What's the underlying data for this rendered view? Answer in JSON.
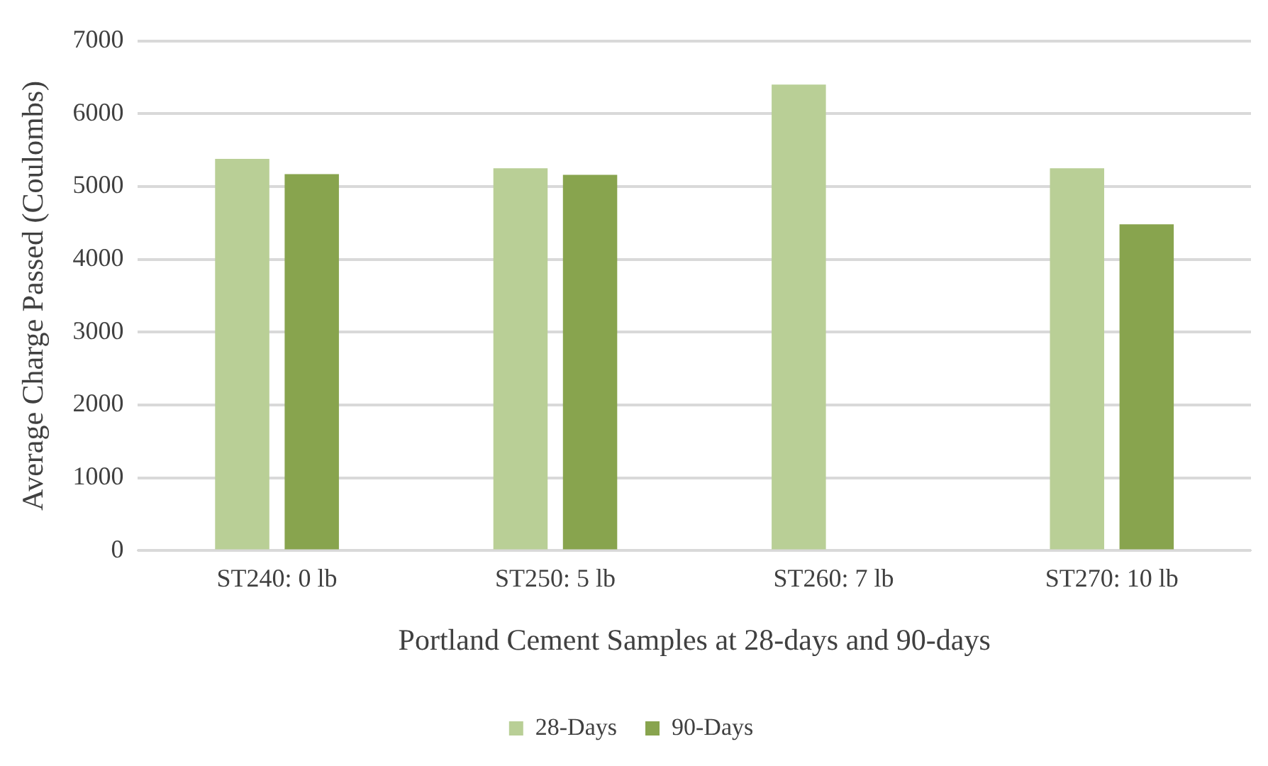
{
  "chart_data": {
    "type": "bar",
    "xlabel": "Portland Cement Samples at 28-days and 90-days",
    "ylabel": "Average Charge Passed (Coulombs)",
    "categories": [
      "ST240: 0 lb",
      "ST250: 5 lb",
      "ST260: 7 lb",
      "ST270: 10 lb"
    ],
    "series": [
      {
        "name": "28-Days",
        "color": "#b9cf96",
        "values": [
          5380,
          5250,
          6400,
          5250
        ]
      },
      {
        "name": "90-Days",
        "color": "#88a44e",
        "values": [
          5170,
          5160,
          null,
          4480
        ]
      }
    ],
    "ylim": [
      0,
      7000
    ],
    "yticks": [
      0,
      1000,
      2000,
      3000,
      4000,
      5000,
      6000,
      7000
    ],
    "grid": "y",
    "legend": "bottom"
  }
}
